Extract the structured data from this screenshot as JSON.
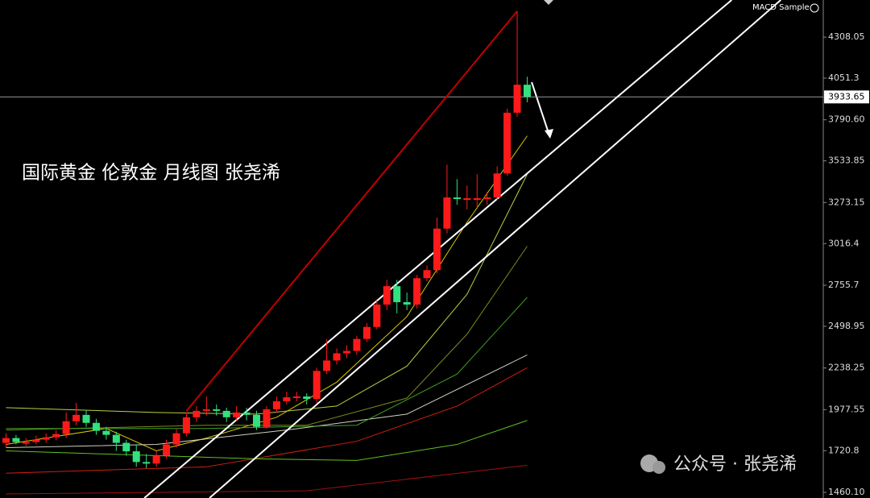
{
  "chart_data": {
    "type": "candlestick",
    "title": "国际黄金 伦敦金 月线图 张尧浠",
    "indicator": "MACD Sample",
    "watermark": "公众号 · 张尧浠",
    "up_color": "#ff1a1a",
    "down_color": "#33e080",
    "ylim": [
      1425,
      4540
    ],
    "yticks": [
      {
        "value": 1460.1,
        "label": "1460.10"
      },
      1720.8,
      1977.55,
      2238.25,
      2498.95,
      2755.7,
      3016.4,
      3273.15,
      3533.85,
      {
        "value": 3790.6,
        "label": "3790.60"
      },
      4051.3,
      4308.05
    ],
    "current_price": 3933.65,
    "xlim": [
      -0.6,
      85.8
    ],
    "candles": [
      [
        1770,
        1830,
        1740,
        1800
      ],
      [
        1800,
        1820,
        1760,
        1775
      ],
      [
        1775,
        1800,
        1750,
        1775
      ],
      [
        1775,
        1815,
        1760,
        1790
      ],
      [
        1790,
        1830,
        1770,
        1805
      ],
      [
        1805,
        1850,
        1785,
        1825
      ],
      [
        1825,
        1960,
        1800,
        1905
      ],
      [
        1905,
        2020,
        1880,
        1945
      ],
      [
        1945,
        1975,
        1870,
        1895
      ],
      [
        1895,
        1920,
        1820,
        1845
      ],
      [
        1845,
        1870,
        1790,
        1820
      ],
      [
        1820,
        1840,
        1720,
        1770
      ],
      [
        1770,
        1790,
        1690,
        1717
      ],
      [
        1717,
        1760,
        1620,
        1650
      ],
      [
        1650,
        1700,
        1610,
        1640
      ],
      [
        1640,
        1720,
        1620,
        1690
      ],
      [
        1690,
        1790,
        1670,
        1760
      ],
      [
        1760,
        1860,
        1740,
        1830
      ],
      [
        1830,
        1960,
        1810,
        1930
      ],
      [
        1930,
        2000,
        1900,
        1970
      ],
      [
        1970,
        2060,
        1940,
        1980
      ],
      [
        1980,
        2010,
        1940,
        1970
      ],
      [
        1970,
        1990,
        1900,
        1930
      ],
      [
        1930,
        2000,
        1910,
        1960
      ],
      [
        1960,
        1990,
        1910,
        1945
      ],
      [
        1945,
        1970,
        1850,
        1870
      ],
      [
        1870,
        2000,
        1860,
        1980
      ],
      [
        1980,
        2060,
        1960,
        2030
      ],
      [
        2030,
        2090,
        2010,
        2055
      ],
      [
        2055,
        2090,
        2030,
        2060
      ],
      [
        2060,
        2080,
        2010,
        2045
      ],
      [
        2045,
        2240,
        2020,
        2220
      ],
      [
        2220,
        2420,
        2200,
        2285
      ],
      [
        2285,
        2360,
        2260,
        2330
      ],
      [
        2330,
        2380,
        2300,
        2345
      ],
      [
        2345,
        2440,
        2320,
        2420
      ],
      [
        2420,
        2520,
        2400,
        2495
      ],
      [
        2495,
        2660,
        2480,
        2635
      ],
      [
        2635,
        2790,
        2600,
        2750
      ],
      [
        2750,
        2790,
        2580,
        2650
      ],
      [
        2650,
        2710,
        2600,
        2635
      ],
      [
        2635,
        2820,
        2610,
        2800
      ],
      [
        2800,
        2880,
        2780,
        2850
      ],
      [
        2850,
        3180,
        2830,
        3110
      ],
      [
        3110,
        3510,
        3080,
        3305
      ],
      [
        3305,
        3420,
        3260,
        3300
      ],
      [
        3300,
        3380,
        3230,
        3300
      ],
      [
        3300,
        3450,
        3240,
        3300
      ],
      [
        3300,
        3340,
        3260,
        3305
      ],
      [
        3305,
        3500,
        3290,
        3455
      ],
      [
        3455,
        3860,
        3440,
        3835
      ],
      [
        3835,
        4470,
        3810,
        4010
      ],
      [
        4010,
        4060,
        3900,
        3935
      ]
    ],
    "trendlines": [
      {
        "color": "#ffffff",
        "x": [
          13.8,
          72.4
        ],
        "values": [
          1425,
          4540
        ]
      },
      {
        "color": "#ffffff",
        "x": [
          20.3,
          77.3
        ],
        "values": [
          1425,
          4540
        ]
      },
      {
        "color": "#c00000",
        "x": [
          18,
          51
        ],
        "values": [
          1969,
          4470
        ]
      }
    ],
    "lines": [
      {
        "color": "#d8c800",
        "x": [
          0,
          10,
          15,
          20,
          27,
          33,
          40,
          46,
          52
        ],
        "values": [
          1760,
          1860,
          1720,
          1800,
          1930,
          2150,
          2560,
          3150,
          3690
        ]
      },
      {
        "color": "#b8d040",
        "x": [
          0,
          15,
          25,
          33,
          40,
          46,
          52
        ],
        "values": [
          1990,
          1960,
          1950,
          2000,
          2250,
          2700,
          3450
        ]
      },
      {
        "color": "#d0d0c0",
        "x": [
          0,
          15,
          28,
          40,
          52
        ],
        "values": [
          1740,
          1760,
          1850,
          1950,
          2320
        ]
      },
      {
        "color": "#7a8a20",
        "x": [
          0,
          20,
          30,
          40,
          46,
          52
        ],
        "values": [
          1850,
          1880,
          1880,
          2050,
          2450,
          3000
        ]
      },
      {
        "color": "#40a020",
        "x": [
          0,
          20,
          35,
          45,
          52
        ],
        "values": [
          1860,
          1860,
          1880,
          2200,
          2680
        ]
      },
      {
        "color": "#d02010",
        "x": [
          0,
          20,
          35,
          45,
          52
        ],
        "values": [
          1580,
          1620,
          1780,
          2000,
          2240
        ]
      },
      {
        "color": "#60c020",
        "x": [
          0,
          25,
          35,
          45,
          52
        ],
        "values": [
          1720,
          1670,
          1660,
          1760,
          1910
        ]
      },
      {
        "color": "#a01010",
        "x": [
          0,
          30,
          52
        ],
        "values": [
          1450,
          1470,
          1630
        ]
      }
    ]
  }
}
